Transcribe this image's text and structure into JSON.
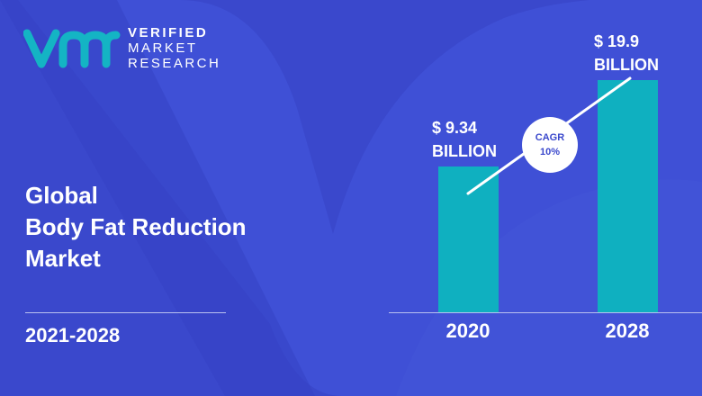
{
  "brand": {
    "line1": "VERIFIED",
    "line2": "MARKET",
    "line3": "RESEARCH",
    "logo_text": "vmr"
  },
  "title": {
    "line1": "Global",
    "line2": "Body Fat Reduction",
    "line3": "Market"
  },
  "period": "2021-2028",
  "colors": {
    "background": "#3a48cc",
    "bar": "#0fb0c0",
    "logo": "#14b4c4"
  },
  "chart_data": {
    "type": "bar",
    "categories": [
      "2020",
      "2028"
    ],
    "values": [
      9.34,
      19.9
    ],
    "unit": "BILLION",
    "data_labels": [
      {
        "amount": "$ 9.34",
        "unit": "BILLION"
      },
      {
        "amount": "$ 19.9",
        "unit": "BILLION"
      }
    ],
    "annotation": {
      "label": "CAGR",
      "value": "10%"
    }
  }
}
